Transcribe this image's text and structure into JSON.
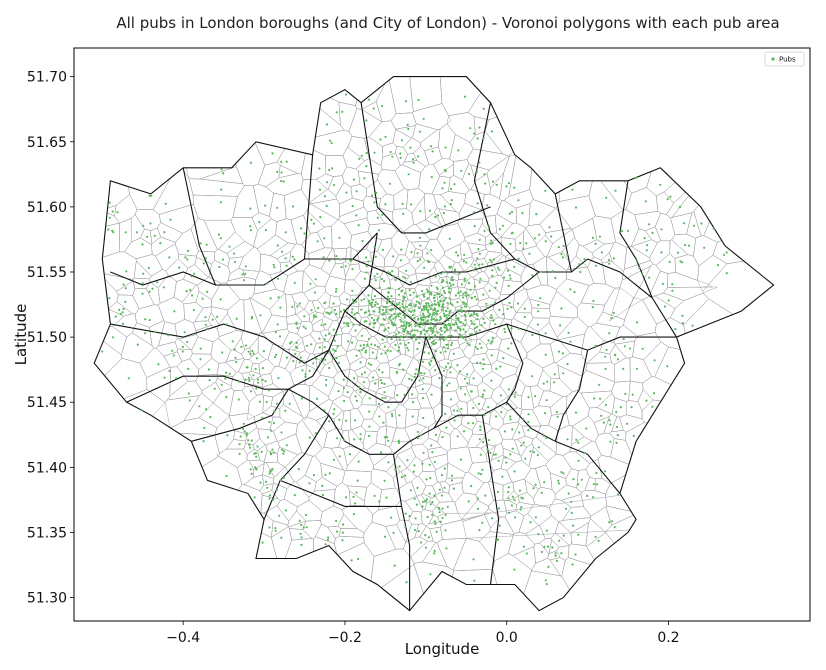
{
  "chart_data": {
    "type": "scatter",
    "title": "All pubs in London boroughs (and City of London) - Voronoi polygons with each pub area",
    "xlabel": "Longitude",
    "ylabel": "Latitude",
    "xlim": [
      -0.535,
      0.375
    ],
    "ylim": [
      51.282,
      51.722
    ],
    "xticks": [
      -0.4,
      -0.2,
      0.0,
      0.2
    ],
    "xtick_labels": [
      "−0.4",
      "−0.2",
      "0.0",
      "0.2"
    ],
    "yticks": [
      51.3,
      51.35,
      51.4,
      51.45,
      51.5,
      51.55,
      51.6,
      51.65,
      51.7
    ],
    "ytick_labels": [
      "51.30",
      "51.35",
      "51.40",
      "51.45",
      "51.50",
      "51.55",
      "51.60",
      "51.65",
      "51.70"
    ],
    "grid": false,
    "legend": {
      "placement": "top-right",
      "entries": [
        {
          "name": "Pubs",
          "color": "#5cb85c"
        }
      ]
    },
    "series": [
      {
        "name": "Pubs",
        "color": "#5cb85c",
        "hotspots": [
          {
            "x": -0.1,
            "y": 51.515,
            "n": 260,
            "sx": 0.035,
            "sy": 0.012
          },
          {
            "x": -0.13,
            "y": 51.525,
            "n": 120,
            "sx": 0.05,
            "sy": 0.02
          },
          {
            "x": -0.08,
            "y": 51.53,
            "n": 100,
            "sx": 0.04,
            "sy": 0.025
          },
          {
            "x": -0.17,
            "y": 51.5,
            "n": 90,
            "sx": 0.04,
            "sy": 0.025
          },
          {
            "x": -0.1,
            "y": 51.47,
            "n": 80,
            "sx": 0.05,
            "sy": 0.03
          },
          {
            "x": -0.05,
            "y": 51.5,
            "n": 60,
            "sx": 0.04,
            "sy": 0.03
          },
          {
            "x": -0.3,
            "y": 51.41,
            "n": 50,
            "sx": 0.02,
            "sy": 0.035
          },
          {
            "x": -0.2,
            "y": 51.42,
            "n": 40,
            "sx": 0.03,
            "sy": 0.03
          },
          {
            "x": -0.1,
            "y": 51.37,
            "n": 45,
            "sx": 0.02,
            "sy": 0.02
          },
          {
            "x": 0.0,
            "y": 51.4,
            "n": 40,
            "sx": 0.04,
            "sy": 0.03
          },
          {
            "x": 0.08,
            "y": 51.39,
            "n": 30,
            "sx": 0.04,
            "sy": 0.03
          },
          {
            "x": 0.13,
            "y": 51.47,
            "n": 30,
            "sx": 0.04,
            "sy": 0.03
          },
          {
            "x": 0.18,
            "y": 51.57,
            "n": 30,
            "sx": 0.04,
            "sy": 0.03
          },
          {
            "x": 0.05,
            "y": 51.56,
            "n": 25,
            "sx": 0.05,
            "sy": 0.04
          },
          {
            "x": -0.05,
            "y": 51.62,
            "n": 30,
            "sx": 0.05,
            "sy": 0.03
          },
          {
            "x": -0.15,
            "y": 51.64,
            "n": 35,
            "sx": 0.05,
            "sy": 0.03
          },
          {
            "x": -0.22,
            "y": 51.58,
            "n": 30,
            "sx": 0.05,
            "sy": 0.03
          },
          {
            "x": -0.3,
            "y": 51.55,
            "n": 30,
            "sx": 0.05,
            "sy": 0.03
          },
          {
            "x": -0.42,
            "y": 51.53,
            "n": 35,
            "sx": 0.05,
            "sy": 0.03
          },
          {
            "x": -0.34,
            "y": 51.47,
            "n": 35,
            "sx": 0.04,
            "sy": 0.02
          },
          {
            "x": -0.26,
            "y": 51.49,
            "n": 30,
            "sx": 0.03,
            "sy": 0.02
          },
          {
            "x": -0.02,
            "y": 51.44,
            "n": 30,
            "sx": 0.04,
            "sy": 0.03
          },
          {
            "x": 0.0,
            "y": 51.55,
            "n": 40,
            "sx": 0.04,
            "sy": 0.03
          },
          {
            "x": -0.47,
            "y": 51.58,
            "n": 20,
            "sx": 0.03,
            "sy": 0.04
          },
          {
            "x": -0.23,
            "y": 51.35,
            "n": 20,
            "sx": 0.04,
            "sy": 0.02
          },
          {
            "x": 0.03,
            "y": 51.34,
            "n": 20,
            "sx": 0.05,
            "sy": 0.03
          }
        ]
      }
    ],
    "boundary": [
      [
        -0.51,
        51.48
      ],
      [
        -0.49,
        51.51
      ],
      [
        -0.5,
        51.56
      ],
      [
        -0.49,
        51.62
      ],
      [
        -0.44,
        51.61
      ],
      [
        -0.4,
        51.63
      ],
      [
        -0.34,
        51.63
      ],
      [
        -0.31,
        51.65
      ],
      [
        -0.24,
        51.64
      ],
      [
        -0.23,
        51.68
      ],
      [
        -0.2,
        51.69
      ],
      [
        -0.18,
        51.68
      ],
      [
        -0.14,
        51.7
      ],
      [
        -0.05,
        51.7
      ],
      [
        -0.02,
        51.68
      ],
      [
        0.01,
        51.64
      ],
      [
        0.03,
        51.63
      ],
      [
        0.06,
        51.61
      ],
      [
        0.09,
        51.62
      ],
      [
        0.15,
        51.62
      ],
      [
        0.19,
        51.63
      ],
      [
        0.24,
        51.6
      ],
      [
        0.27,
        51.57
      ],
      [
        0.33,
        51.54
      ],
      [
        0.29,
        51.52
      ],
      [
        0.25,
        51.51
      ],
      [
        0.21,
        51.5
      ],
      [
        0.22,
        51.48
      ],
      [
        0.18,
        51.44
      ],
      [
        0.16,
        51.42
      ],
      [
        0.14,
        51.38
      ],
      [
        0.16,
        51.36
      ],
      [
        0.15,
        51.35
      ],
      [
        0.11,
        51.33
      ],
      [
        0.07,
        51.3
      ],
      [
        0.04,
        51.29
      ],
      [
        0.01,
        51.31
      ],
      [
        -0.05,
        51.31
      ],
      [
        -0.08,
        51.32
      ],
      [
        -0.12,
        51.29
      ],
      [
        -0.16,
        51.31
      ],
      [
        -0.19,
        51.32
      ],
      [
        -0.22,
        51.34
      ],
      [
        -0.26,
        51.33
      ],
      [
        -0.31,
        51.33
      ],
      [
        -0.3,
        51.36
      ],
      [
        -0.32,
        51.38
      ],
      [
        -0.37,
        51.39
      ],
      [
        -0.39,
        51.42
      ],
      [
        -0.44,
        51.44
      ],
      [
        -0.47,
        51.45
      ],
      [
        -0.51,
        51.48
      ]
    ],
    "borough_lines": [
      [
        [
          -0.49,
          51.51
        ],
        [
          -0.4,
          51.5
        ],
        [
          -0.35,
          51.51
        ],
        [
          -0.3,
          51.5
        ],
        [
          -0.25,
          51.48
        ],
        [
          -0.22,
          51.49
        ]
      ],
      [
        [
          -0.4,
          51.63
        ],
        [
          -0.38,
          51.57
        ],
        [
          -0.36,
          51.54
        ],
        [
          -0.3,
          51.54
        ],
        [
          -0.25,
          51.56
        ]
      ],
      [
        [
          -0.36,
          51.54
        ],
        [
          -0.4,
          51.55
        ],
        [
          -0.45,
          51.54
        ],
        [
          -0.49,
          51.55
        ]
      ],
      [
        [
          -0.24,
          51.64
        ],
        [
          -0.25,
          51.56
        ],
        [
          -0.22,
          51.56
        ],
        [
          -0.19,
          51.56
        ],
        [
          -0.16,
          51.58
        ]
      ],
      [
        [
          -0.18,
          51.68
        ],
        [
          -0.16,
          51.6
        ],
        [
          -0.13,
          51.58
        ],
        [
          -0.1,
          51.58
        ],
        [
          -0.06,
          51.59
        ],
        [
          -0.02,
          51.6
        ]
      ],
      [
        [
          -0.02,
          51.68
        ],
        [
          -0.04,
          51.62
        ],
        [
          -0.02,
          51.58
        ],
        [
          0.01,
          51.56
        ],
        [
          0.04,
          51.55
        ],
        [
          0.08,
          51.55
        ],
        [
          0.1,
          51.56
        ]
      ],
      [
        [
          0.1,
          51.56
        ],
        [
          0.14,
          51.55
        ],
        [
          0.18,
          51.53
        ],
        [
          0.21,
          51.5
        ]
      ],
      [
        [
          0.15,
          51.62
        ],
        [
          0.14,
          51.58
        ],
        [
          0.16,
          51.56
        ],
        [
          0.18,
          51.53
        ]
      ],
      [
        [
          0.06,
          51.61
        ],
        [
          0.07,
          51.58
        ],
        [
          0.08,
          51.55
        ]
      ],
      [
        [
          -0.16,
          51.58
        ],
        [
          -0.17,
          51.54
        ],
        [
          -0.2,
          51.52
        ],
        [
          -0.22,
          51.49
        ],
        [
          -0.24,
          51.47
        ],
        [
          -0.27,
          51.46
        ]
      ],
      [
        [
          -0.19,
          51.56
        ],
        [
          -0.15,
          51.55
        ],
        [
          -0.12,
          51.54
        ],
        [
          -0.08,
          51.55
        ],
        [
          -0.05,
          51.55
        ],
        [
          0.01,
          51.56
        ]
      ],
      [
        [
          -0.17,
          51.54
        ],
        [
          -0.15,
          51.53
        ],
        [
          -0.13,
          51.52
        ],
        [
          -0.11,
          51.51
        ],
        [
          -0.08,
          51.51
        ],
        [
          -0.06,
          51.52
        ],
        [
          -0.03,
          51.52
        ],
        [
          0.0,
          51.53
        ],
        [
          0.04,
          51.55
        ]
      ],
      [
        [
          -0.2,
          51.52
        ],
        [
          -0.18,
          51.51
        ],
        [
          -0.15,
          51.5
        ],
        [
          -0.12,
          51.5
        ],
        [
          -0.1,
          51.5
        ],
        [
          -0.08,
          51.5
        ],
        [
          -0.05,
          51.5
        ],
        [
          0.0,
          51.51
        ],
        [
          0.05,
          51.5
        ],
        [
          0.1,
          51.49
        ],
        [
          0.14,
          51.5
        ],
        [
          0.21,
          51.5
        ]
      ],
      [
        [
          -0.47,
          51.45
        ],
        [
          -0.4,
          51.47
        ],
        [
          -0.35,
          51.47
        ],
        [
          -0.3,
          51.46
        ],
        [
          -0.27,
          51.46
        ],
        [
          -0.24,
          51.45
        ],
        [
          -0.22,
          51.44
        ]
      ],
      [
        [
          -0.39,
          51.42
        ],
        [
          -0.33,
          51.43
        ],
        [
          -0.29,
          51.44
        ],
        [
          -0.27,
          51.46
        ]
      ],
      [
        [
          -0.22,
          51.49
        ],
        [
          -0.2,
          51.47
        ],
        [
          -0.18,
          51.46
        ],
        [
          -0.15,
          51.45
        ],
        [
          -0.13,
          51.45
        ],
        [
          -0.11,
          51.47
        ],
        [
          -0.1,
          51.5
        ]
      ],
      [
        [
          -0.22,
          51.44
        ],
        [
          -0.2,
          51.42
        ],
        [
          -0.17,
          51.41
        ],
        [
          -0.14,
          51.41
        ],
        [
          -0.12,
          51.42
        ],
        [
          -0.09,
          51.43
        ],
        [
          -0.06,
          51.44
        ],
        [
          -0.03,
          51.44
        ],
        [
          0.0,
          51.45
        ],
        [
          0.03,
          51.43
        ],
        [
          0.06,
          51.42
        ],
        [
          0.1,
          51.41
        ],
        [
          0.14,
          51.38
        ]
      ],
      [
        [
          -0.1,
          51.5
        ],
        [
          -0.08,
          51.47
        ],
        [
          -0.08,
          51.44
        ],
        [
          -0.09,
          51.43
        ]
      ],
      [
        [
          0.0,
          51.51
        ],
        [
          0.02,
          51.48
        ],
        [
          0.01,
          51.46
        ],
        [
          0.0,
          51.45
        ]
      ],
      [
        [
          0.1,
          51.49
        ],
        [
          0.09,
          51.46
        ],
        [
          0.07,
          51.44
        ],
        [
          0.06,
          51.42
        ]
      ],
      [
        [
          -0.14,
          51.41
        ],
        [
          -0.13,
          51.37
        ],
        [
          -0.12,
          51.34
        ],
        [
          -0.12,
          51.29
        ]
      ],
      [
        [
          -0.22,
          51.44
        ],
        [
          -0.25,
          51.41
        ],
        [
          -0.28,
          51.39
        ],
        [
          -0.3,
          51.36
        ]
      ],
      [
        [
          -0.03,
          51.44
        ],
        [
          -0.02,
          51.4
        ],
        [
          -0.01,
          51.36
        ],
        [
          -0.02,
          51.31
        ]
      ],
      [
        [
          -0.28,
          51.39
        ],
        [
          -0.24,
          51.38
        ],
        [
          -0.2,
          51.37
        ],
        [
          -0.17,
          51.37
        ],
        [
          -0.13,
          51.37
        ]
      ]
    ]
  }
}
